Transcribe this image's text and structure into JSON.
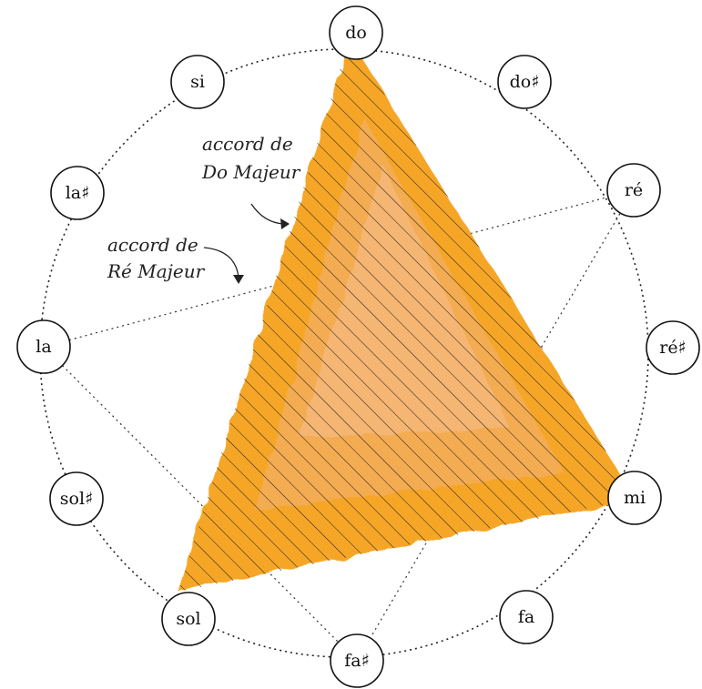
{
  "notes": [
    "do",
    "do♯",
    "ré",
    "ré♯",
    "mi",
    "fa",
    "fa♯",
    "sol",
    "sol♯",
    "la",
    "la♯",
    "si"
  ],
  "chords": [
    {
      "name": "Do Majeur",
      "notes": [
        "do",
        "mi",
        "sol"
      ],
      "caption_line1": "accord de",
      "caption_line2": "Do Majeur",
      "fill": "#f7a21b",
      "hatched": true
    },
    {
      "name": "Ré Majeur",
      "notes": [
        "ré",
        "fa♯",
        "la"
      ],
      "caption_line1": "accord de",
      "caption_line2": "Ré Majeur",
      "dotted": true
    }
  ],
  "colors": {
    "circle": "#222222",
    "hatch": "#1a1a1a",
    "orange": "#f7a21b",
    "pink": "#f2b7a0"
  }
}
